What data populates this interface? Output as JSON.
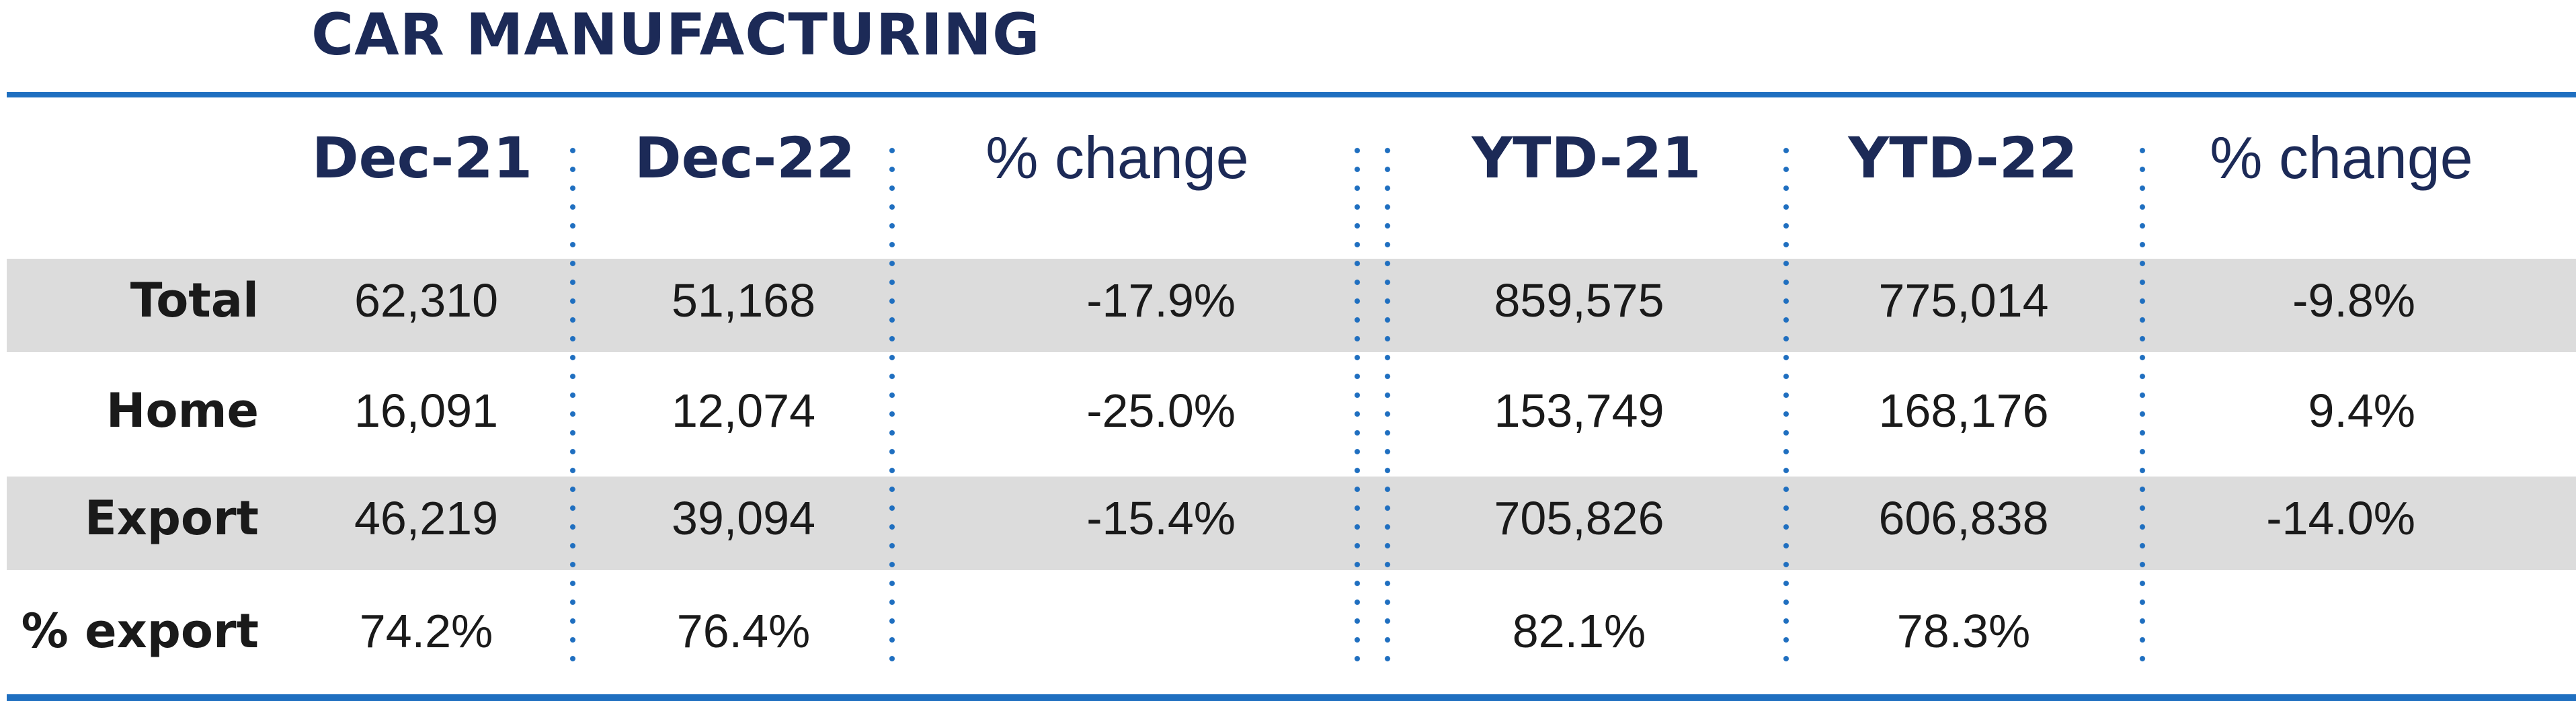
{
  "title": "CAR MANUFACTURING",
  "colors": {
    "title": "#1c2a57",
    "rule": "#1f6fc0",
    "band": "#dcdcdc",
    "text": "#1a1a1a"
  },
  "chart_data": {
    "type": "table",
    "title": "CAR MANUFACTURING",
    "columns": [
      "Dec-21",
      "Dec-22",
      "% change",
      "YTD-21",
      "YTD-22",
      "% change"
    ],
    "rows": [
      {
        "label": "Total",
        "values": [
          "62,310",
          "51,168",
          "-17.9%",
          "859,575",
          "775,014",
          "-9.8%"
        ]
      },
      {
        "label": "Home",
        "values": [
          "16,091",
          "12,074",
          "-25.0%",
          "153,749",
          "168,176",
          "9.4%"
        ]
      },
      {
        "label": "Export",
        "values": [
          "46,219",
          "39,094",
          "-15.4%",
          "705,826",
          "606,838",
          "-14.0%"
        ]
      },
      {
        "label": "% export",
        "values": [
          "74.2%",
          "76.4%",
          "",
          "82.1%",
          "78.3%",
          ""
        ]
      }
    ]
  }
}
